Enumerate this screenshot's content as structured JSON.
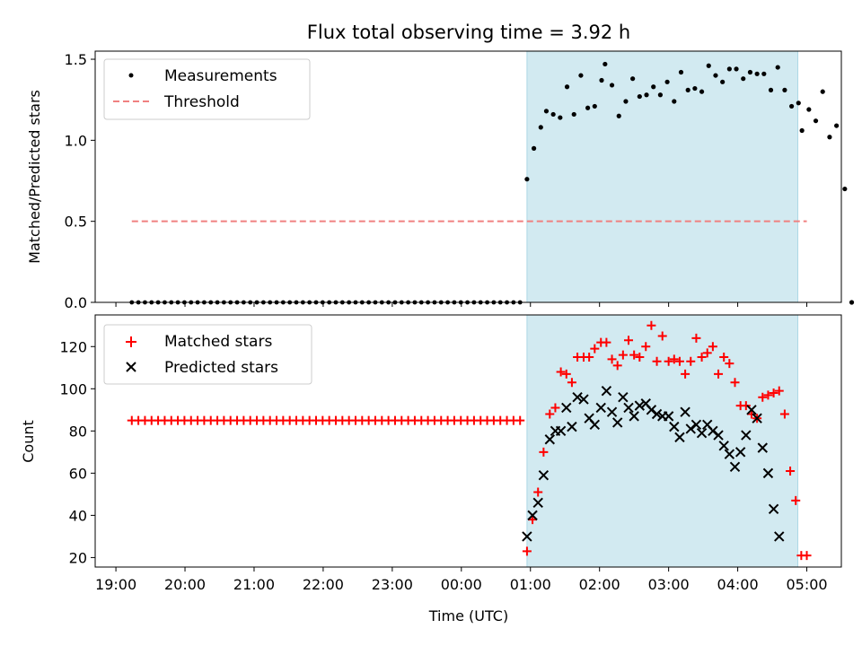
{
  "chart_data": {
    "type": "scatter",
    "title": "Flux total observing time = 3.92 h",
    "xlabel": "Time (UTC)",
    "x_ticks": [
      "19:00",
      "20:00",
      "21:00",
      "22:00",
      "23:00",
      "00:00",
      "01:00",
      "02:00",
      "03:00",
      "04:00",
      "05:00"
    ],
    "x_tick_hours": [
      0,
      1,
      2,
      3,
      4,
      5,
      6,
      7,
      8,
      9,
      10
    ],
    "x_range_hours": [
      -0.3,
      10.5
    ],
    "x_origin": "19:00",
    "observing_window_hours": [
      5.95,
      9.87
    ],
    "colors": {
      "measurement": "#000000",
      "threshold": "#f08080",
      "matched": "#ff0000",
      "predicted": "#000000",
      "window": "#add8e6"
    },
    "panels": [
      {
        "name": "ratio",
        "ylabel": "Matched/Predicted stars",
        "ylim": [
          0,
          1.55
        ],
        "yticks": [
          0.0,
          0.5,
          1.0,
          1.5
        ],
        "ytick_labels": [
          "0.0",
          "0.5",
          "1.0",
          "1.5"
        ],
        "legend": [
          {
            "label": "Measurements",
            "marker": "dot"
          },
          {
            "label": "Threshold",
            "marker": "dashed-line"
          }
        ],
        "threshold": {
          "value": 0.5,
          "x_start": 0.23,
          "x_end": 10.0
        },
        "baseline_zero": {
          "x_start": 0.23,
          "x_end": 5.85,
          "count": 60,
          "value": 0.0
        },
        "measurements": [
          [
            5.95,
            0.76
          ],
          [
            6.05,
            0.95
          ],
          [
            6.15,
            1.08
          ],
          [
            6.23,
            1.18
          ],
          [
            6.33,
            1.16
          ],
          [
            6.43,
            1.14
          ],
          [
            6.53,
            1.33
          ],
          [
            6.63,
            1.16
          ],
          [
            6.73,
            1.4
          ],
          [
            6.83,
            1.2
          ],
          [
            6.93,
            1.21
          ],
          [
            7.03,
            1.37
          ],
          [
            7.08,
            1.47
          ],
          [
            7.18,
            1.34
          ],
          [
            7.28,
            1.15
          ],
          [
            7.38,
            1.24
          ],
          [
            7.48,
            1.38
          ],
          [
            7.58,
            1.27
          ],
          [
            7.68,
            1.28
          ],
          [
            7.78,
            1.33
          ],
          [
            7.88,
            1.28
          ],
          [
            7.98,
            1.36
          ],
          [
            8.08,
            1.24
          ],
          [
            8.18,
            1.42
          ],
          [
            8.28,
            1.31
          ],
          [
            8.38,
            1.32
          ],
          [
            8.48,
            1.3
          ],
          [
            8.58,
            1.46
          ],
          [
            8.68,
            1.4
          ],
          [
            8.78,
            1.36
          ],
          [
            8.88,
            1.44
          ],
          [
            8.98,
            1.44
          ],
          [
            9.08,
            1.38
          ],
          [
            9.18,
            1.42
          ],
          [
            9.28,
            1.41
          ],
          [
            9.38,
            1.41
          ],
          [
            9.48,
            1.31
          ],
          [
            9.58,
            1.45
          ],
          [
            9.68,
            1.31
          ],
          [
            9.78,
            1.21
          ],
          [
            9.88,
            1.23
          ],
          [
            9.93,
            1.06
          ],
          [
            10.03,
            1.19
          ],
          [
            10.13,
            1.12
          ],
          [
            10.23,
            1.3
          ],
          [
            10.33,
            1.02
          ],
          [
            10.43,
            1.09
          ],
          [
            10.55,
            0.7
          ],
          [
            10.65,
            0.0
          ]
        ]
      },
      {
        "name": "counts",
        "ylabel": "Count",
        "ylim": [
          15.5,
          135
        ],
        "yticks": [
          20,
          40,
          60,
          80,
          100,
          120
        ],
        "ytick_labels": [
          "20",
          "40",
          "60",
          "80",
          "100",
          "120"
        ],
        "legend": [
          {
            "label": "Matched stars",
            "marker": "plus"
          },
          {
            "label": "Predicted stars",
            "marker": "x"
          }
        ],
        "matched_flat": {
          "x_start": 0.23,
          "x_end": 5.85,
          "count": 60,
          "value": 85
        },
        "matched": [
          [
            5.95,
            23
          ],
          [
            6.03,
            38
          ],
          [
            6.11,
            51
          ],
          [
            6.19,
            70
          ],
          [
            6.28,
            88
          ],
          [
            6.36,
            91
          ],
          [
            6.44,
            108
          ],
          [
            6.52,
            107
          ],
          [
            6.6,
            103
          ],
          [
            6.68,
            115
          ],
          [
            6.77,
            115
          ],
          [
            6.85,
            115
          ],
          [
            6.93,
            119
          ],
          [
            7.02,
            122
          ],
          [
            7.1,
            122
          ],
          [
            7.18,
            114
          ],
          [
            7.26,
            111
          ],
          [
            7.34,
            116
          ],
          [
            7.42,
            123
          ],
          [
            7.5,
            116
          ],
          [
            7.58,
            115
          ],
          [
            7.67,
            120
          ],
          [
            7.75,
            130
          ],
          [
            7.83,
            113
          ],
          [
            7.91,
            125
          ],
          [
            8.0,
            113
          ],
          [
            8.08,
            114
          ],
          [
            8.16,
            113
          ],
          [
            8.24,
            107
          ],
          [
            8.32,
            113
          ],
          [
            8.4,
            124
          ],
          [
            8.48,
            115
          ],
          [
            8.56,
            117
          ],
          [
            8.64,
            120
          ],
          [
            8.72,
            107
          ],
          [
            8.8,
            115
          ],
          [
            8.88,
            112
          ],
          [
            8.96,
            103
          ],
          [
            9.04,
            92
          ],
          [
            9.12,
            92
          ],
          [
            9.2,
            88
          ],
          [
            9.28,
            86
          ],
          [
            9.36,
            96
          ],
          [
            9.44,
            97
          ],
          [
            9.52,
            98
          ],
          [
            9.6,
            99
          ],
          [
            9.68,
            88
          ],
          [
            9.76,
            61
          ],
          [
            9.84,
            47
          ],
          [
            9.92,
            21
          ],
          [
            10.0,
            21
          ]
        ],
        "predicted": [
          [
            5.95,
            30
          ],
          [
            6.03,
            40
          ],
          [
            6.11,
            46
          ],
          [
            6.19,
            59
          ],
          [
            6.28,
            76
          ],
          [
            6.36,
            80
          ],
          [
            6.44,
            80
          ],
          [
            6.52,
            91
          ],
          [
            6.6,
            82
          ],
          [
            6.68,
            96
          ],
          [
            6.77,
            95
          ],
          [
            6.85,
            86
          ],
          [
            6.93,
            83
          ],
          [
            7.02,
            91
          ],
          [
            7.1,
            99
          ],
          [
            7.18,
            89
          ],
          [
            7.26,
            84
          ],
          [
            7.34,
            96
          ],
          [
            7.42,
            91
          ],
          [
            7.5,
            87
          ],
          [
            7.58,
            92
          ],
          [
            7.67,
            93
          ],
          [
            7.75,
            90
          ],
          [
            7.83,
            88
          ],
          [
            7.91,
            87
          ],
          [
            8.0,
            87
          ],
          [
            8.08,
            82
          ],
          [
            8.16,
            77
          ],
          [
            8.24,
            89
          ],
          [
            8.32,
            81
          ],
          [
            8.4,
            83
          ],
          [
            8.48,
            79
          ],
          [
            8.56,
            83
          ],
          [
            8.64,
            80
          ],
          [
            8.72,
            78
          ],
          [
            8.8,
            73
          ],
          [
            8.88,
            69
          ],
          [
            8.96,
            63
          ],
          [
            9.04,
            70
          ],
          [
            9.12,
            78
          ],
          [
            9.2,
            90
          ],
          [
            9.28,
            86
          ],
          [
            9.36,
            72
          ],
          [
            9.44,
            60
          ],
          [
            9.52,
            43
          ],
          [
            9.6,
            30
          ]
        ]
      }
    ]
  }
}
